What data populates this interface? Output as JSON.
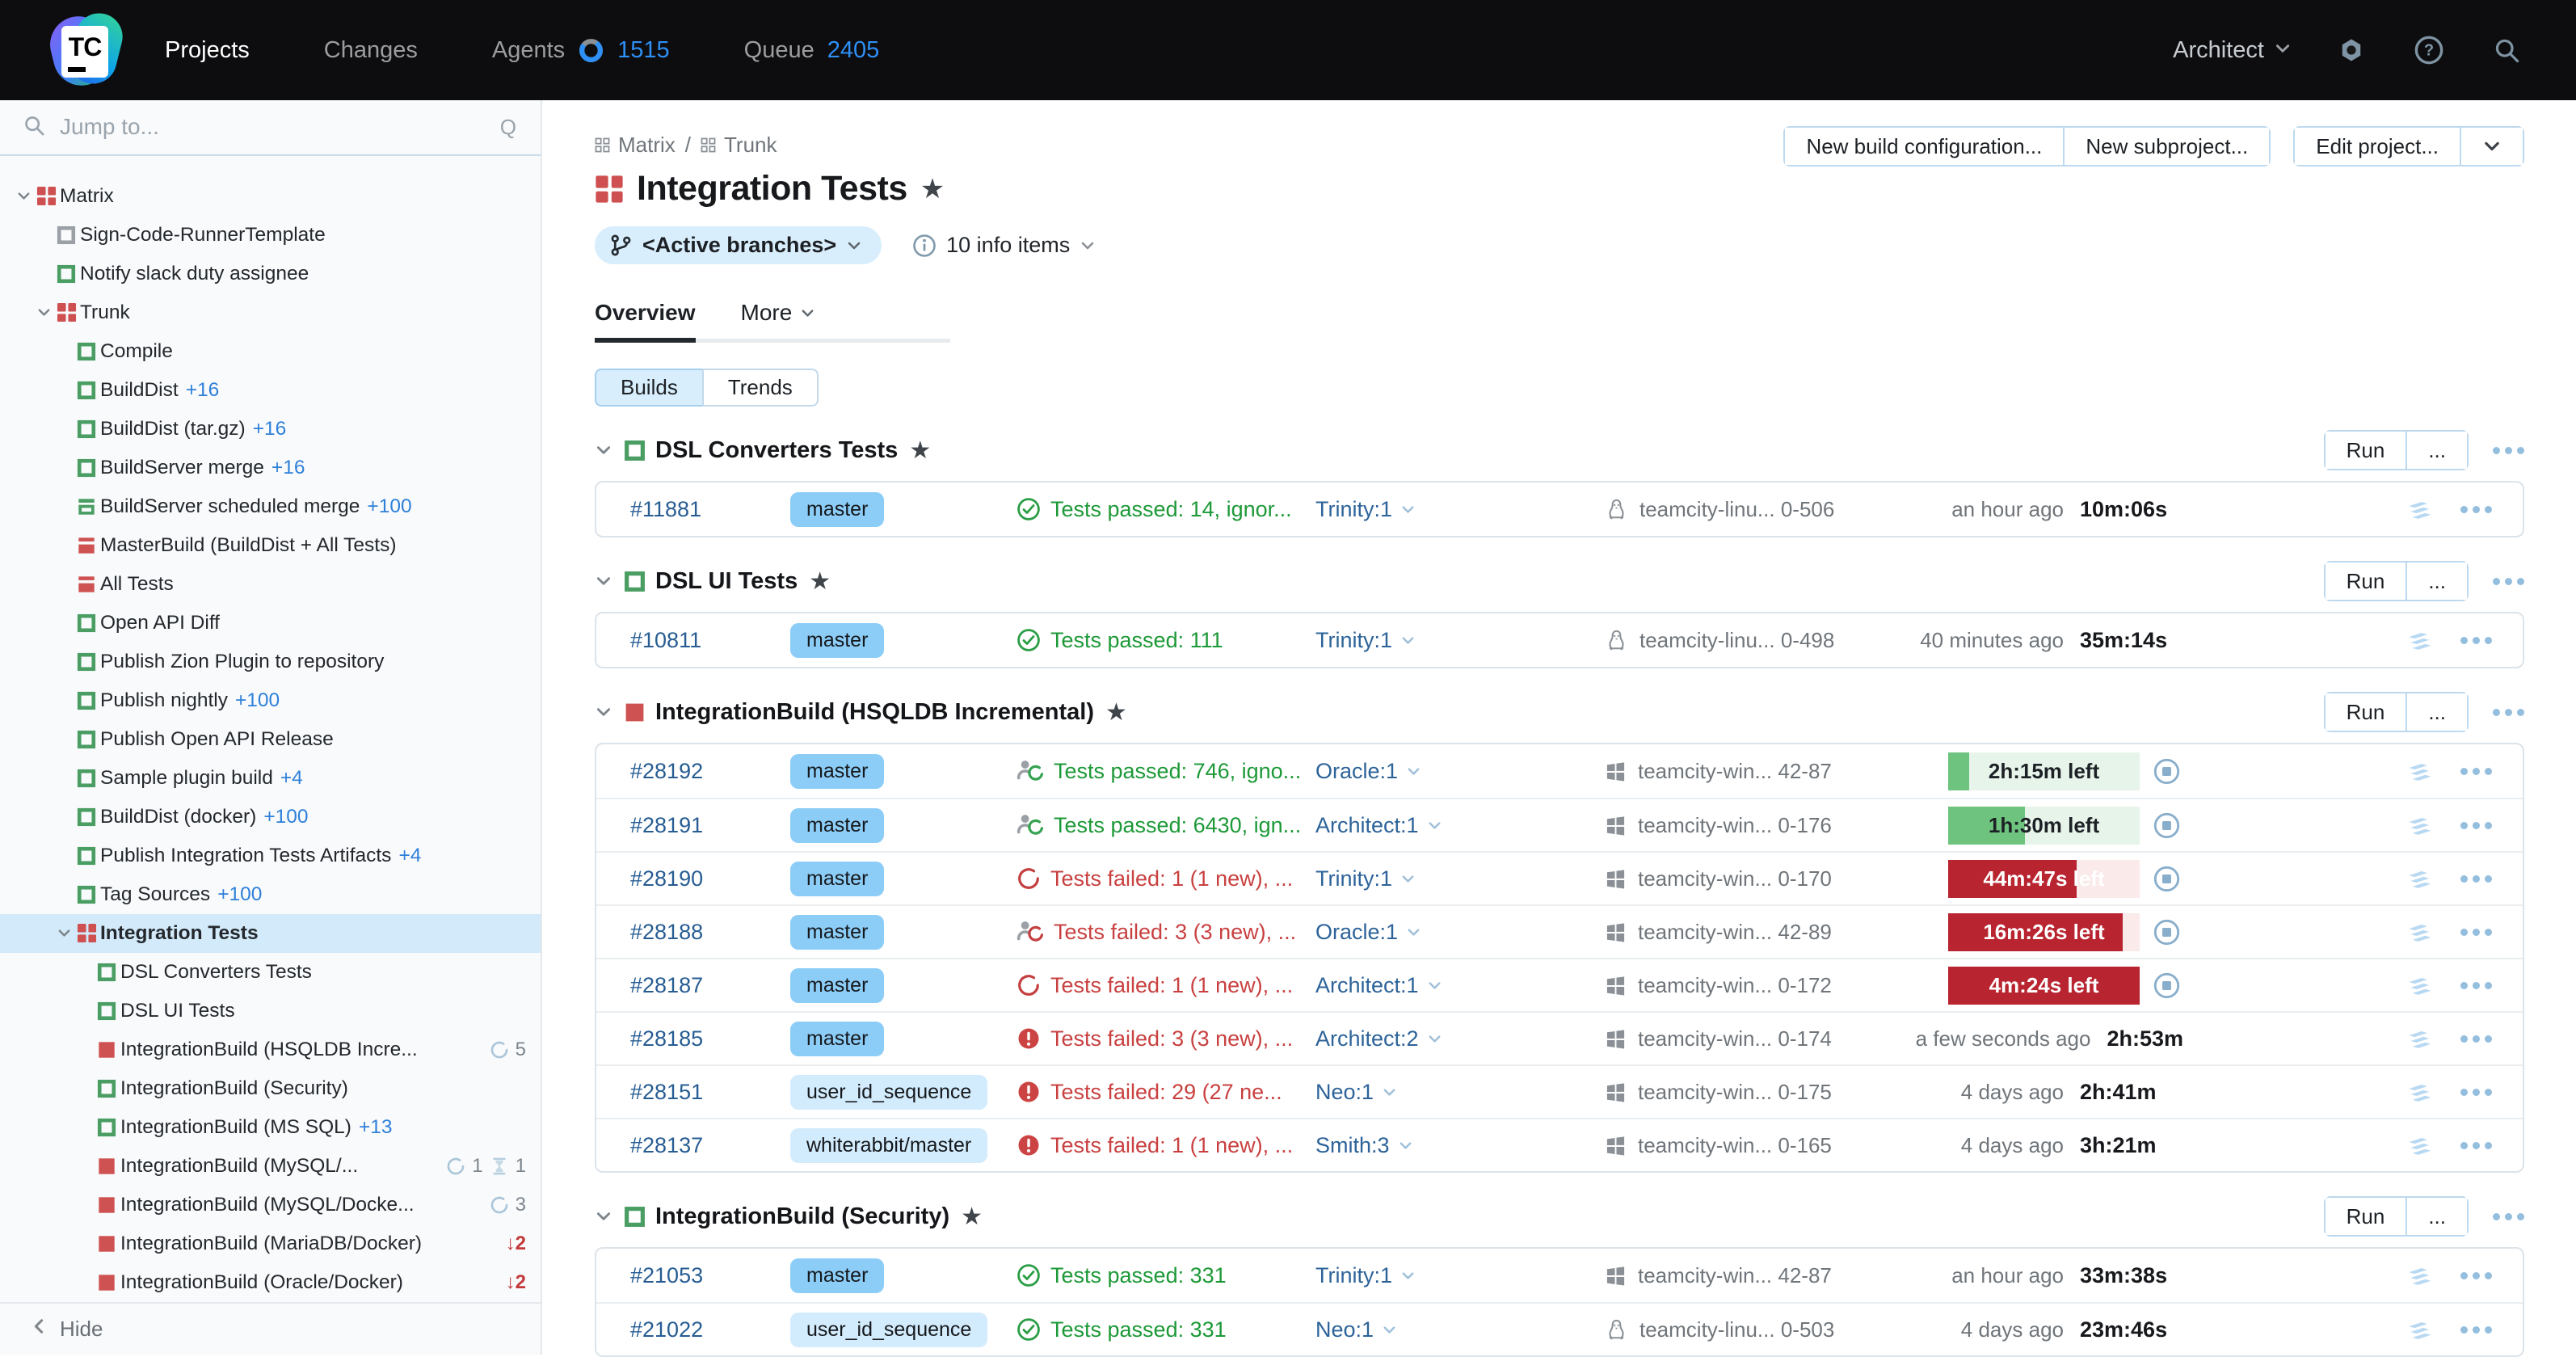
{
  "colors": {
    "topbar_bg": "#0d0d0f",
    "accent_blue": "#2e8ff5",
    "link_blue": "#275d93",
    "success_green": "#1d9937",
    "danger_red": "#c94040",
    "chip_default": "#8ccdf8",
    "chip_light": "#d3ecfd",
    "progress_green": "#6ec47f",
    "progress_green_track": "#e7f4ea",
    "progress_red": "#b8242f",
    "progress_red_track": "#fbeaea",
    "selected_row": "#d2eafa",
    "project_red": "#cf5050",
    "build_green": "#4b9e63"
  },
  "topnav": {
    "logo_text": "TC",
    "items": [
      {
        "label": "Projects",
        "active": true
      },
      {
        "label": "Changes",
        "active": false
      },
      {
        "label": "Agents",
        "active": false,
        "icon": "donut",
        "count": "1515"
      },
      {
        "label": "Queue",
        "active": false,
        "count": "2405"
      }
    ],
    "user_label": "Architect",
    "icons": [
      "gear-icon",
      "help-icon",
      "search-icon"
    ]
  },
  "sidebar": {
    "search_placeholder": "Jump to...",
    "shortcut_hint": "Q",
    "hide_label": "Hide",
    "tree": [
      {
        "depth": 0,
        "icon": "proj",
        "label": "Matrix",
        "expander": true
      },
      {
        "depth": 1,
        "icon": "gray",
        "label": "Sign-Code-RunnerTemplate"
      },
      {
        "depth": 1,
        "icon": "green",
        "label": "Notify slack duty assignee"
      },
      {
        "depth": 1,
        "icon": "proj",
        "label": "Trunk",
        "expander": true
      },
      {
        "depth": 2,
        "icon": "green",
        "label": "Compile"
      },
      {
        "depth": 2,
        "icon": "green",
        "label": "BuildDist",
        "suffix": "+16"
      },
      {
        "depth": 2,
        "icon": "green",
        "label": "BuildDist (tar.gz)",
        "suffix": "+16"
      },
      {
        "depth": 2,
        "icon": "green",
        "label": "BuildServer merge",
        "suffix": "+16"
      },
      {
        "depth": 2,
        "icon": "green-comp",
        "label": "BuildServer scheduled merge",
        "suffix": "+100"
      },
      {
        "depth": 2,
        "icon": "red-comp",
        "label": "MasterBuild (BuildDist + All Tests)"
      },
      {
        "depth": 2,
        "icon": "red-comp",
        "label": "All Tests"
      },
      {
        "depth": 2,
        "icon": "green",
        "label": "Open API Diff"
      },
      {
        "depth": 2,
        "icon": "green",
        "label": "Publish Zion Plugin to repository"
      },
      {
        "depth": 2,
        "icon": "green",
        "label": "Publish nightly",
        "suffix": "+100"
      },
      {
        "depth": 2,
        "icon": "green",
        "label": "Publish Open API Release"
      },
      {
        "depth": 2,
        "icon": "green",
        "label": "Sample plugin build",
        "suffix": "+4"
      },
      {
        "depth": 2,
        "icon": "green",
        "label": "BuildDist (docker)",
        "suffix": "+100"
      },
      {
        "depth": 2,
        "icon": "green",
        "label": "Publish Integration Tests Artifacts",
        "suffix": "+4"
      },
      {
        "depth": 2,
        "icon": "green",
        "label": "Tag Sources",
        "suffix": "+100"
      },
      {
        "depth": 2,
        "icon": "proj",
        "label": "Integration Tests",
        "expander": true,
        "selected": true
      },
      {
        "depth": 3,
        "icon": "green",
        "label": "DSL Converters Tests"
      },
      {
        "depth": 3,
        "icon": "green",
        "label": "DSL UI Tests"
      },
      {
        "depth": 3,
        "icon": "red",
        "label": "IntegrationBuild (HSQLDB Incre...",
        "badges": [
          {
            "type": "spinner",
            "count": "5"
          }
        ]
      },
      {
        "depth": 3,
        "icon": "green",
        "label": "IntegrationBuild (Security)"
      },
      {
        "depth": 3,
        "icon": "green",
        "label": "IntegrationBuild (MS SQL)",
        "suffix": "+13"
      },
      {
        "depth": 3,
        "icon": "red",
        "label": "IntegrationBuild (MySQL/...",
        "badges": [
          {
            "type": "spinner",
            "count": "1"
          },
          {
            "type": "hourglass",
            "count": "1"
          }
        ]
      },
      {
        "depth": 3,
        "icon": "red",
        "label": "IntegrationBuild (MySQL/Docke...",
        "badges": [
          {
            "type": "spinner",
            "count": "3"
          }
        ]
      },
      {
        "depth": 3,
        "icon": "red",
        "label": "IntegrationBuild (MariaDB/Docker)",
        "badges": [
          {
            "type": "arrow-down",
            "count": "2"
          }
        ]
      },
      {
        "depth": 3,
        "icon": "red",
        "label": "IntegrationBuild (Oracle/Docker)",
        "badges": [
          {
            "type": "arrow-down",
            "count": "2"
          }
        ]
      }
    ]
  },
  "header": {
    "breadcrumb": [
      "Matrix",
      "Trunk"
    ],
    "title": "Integration Tests",
    "branch_filter": "<Active branches>",
    "info_items": "10 info items",
    "tabs": [
      {
        "label": "Overview",
        "active": true
      },
      {
        "label": "More",
        "active": false,
        "chevron": true
      }
    ],
    "toggle": [
      {
        "label": "Builds",
        "active": true
      },
      {
        "label": "Trends",
        "active": false
      }
    ],
    "actions_group1": [
      "New build configuration...",
      "New subproject..."
    ],
    "actions_group2": [
      "Edit project..."
    ]
  },
  "group_actions": {
    "run_label": "Run",
    "more_label": "..."
  },
  "groups": [
    {
      "name": "DSL Converters Tests",
      "icon": "green",
      "starred": true,
      "rows": [
        {
          "number": "#11881",
          "branch": "master",
          "branch_style": "default",
          "status_icon": "check",
          "status_kind": "ok",
          "status_text": "Tests passed: 14, ignor...",
          "investigator": "Trinity:1",
          "agent_os": "linux",
          "agent": "teamcity-linu... 0-506",
          "ago": "an hour ago",
          "duration": "10m:06s"
        }
      ]
    },
    {
      "name": "DSL UI Tests",
      "icon": "green",
      "starred": true,
      "rows": [
        {
          "number": "#10811",
          "branch": "master",
          "branch_style": "default",
          "status_icon": "check",
          "status_kind": "ok",
          "status_text": "Tests passed: 111",
          "investigator": "Trinity:1",
          "agent_os": "linux",
          "agent": "teamcity-linu... 0-498",
          "ago": "40 minutes ago",
          "duration": "35m:14s"
        }
      ]
    },
    {
      "name": "IntegrationBuild (HSQLDB Incremental)",
      "icon": "red",
      "starred": true,
      "rows": [
        {
          "number": "#28192",
          "branch": "master",
          "branch_style": "default",
          "status_icon": "user-green",
          "status_kind": "ok",
          "status_text": "Tests passed: 746, igno...",
          "investigator": "Oracle:1",
          "agent_os": "win",
          "agent": "teamcity-win... 42-87",
          "progress": {
            "pct": 11,
            "color": "green",
            "label": "2h:15m left"
          }
        },
        {
          "number": "#28191",
          "branch": "master",
          "branch_style": "default",
          "status_icon": "user-green",
          "status_kind": "ok",
          "status_text": "Tests passed: 6430, ign...",
          "investigator": "Architect:1",
          "agent_os": "win",
          "agent": "teamcity-win... 0-176",
          "progress": {
            "pct": 40,
            "color": "green",
            "label": "1h:30m left"
          }
        },
        {
          "number": "#28190",
          "branch": "master",
          "branch_style": "default",
          "status_icon": "spinner-red",
          "status_kind": "fail",
          "status_text": "Tests failed: 1 (1 new), ...",
          "investigator": "Trinity:1",
          "agent_os": "win",
          "agent": "teamcity-win... 0-170",
          "progress": {
            "pct": 67,
            "color": "red",
            "label": "44m:47s left"
          }
        },
        {
          "number": "#28188",
          "branch": "master",
          "branch_style": "default",
          "status_icon": "user-red",
          "status_kind": "fail",
          "status_text": "Tests failed: 3 (3 new), ...",
          "investigator": "Oracle:1",
          "agent_os": "win",
          "agent": "teamcity-win... 42-89",
          "progress": {
            "pct": 91,
            "color": "red",
            "label": "16m:26s left"
          }
        },
        {
          "number": "#28187",
          "branch": "master",
          "branch_style": "default",
          "status_icon": "spinner-red",
          "status_kind": "fail",
          "status_text": "Tests failed: 1 (1 new), ...",
          "investigator": "Architect:1",
          "agent_os": "win",
          "agent": "teamcity-win... 0-172",
          "progress": {
            "pct": 100,
            "color": "red",
            "label": "4m:24s left"
          }
        },
        {
          "number": "#28185",
          "branch": "master",
          "branch_style": "default",
          "status_icon": "error",
          "status_kind": "fail",
          "status_text": "Tests failed: 3 (3 new), ...",
          "investigator": "Architect:2",
          "agent_os": "win",
          "agent": "teamcity-win... 0-174",
          "ago": "a few seconds ago",
          "duration": "2h:53m"
        },
        {
          "number": "#28151",
          "branch": "user_id_sequence",
          "branch_style": "light",
          "status_icon": "error",
          "status_kind": "fail",
          "status_text": "Tests failed: 29 (27 ne...",
          "investigator": "Neo:1",
          "agent_os": "win",
          "agent": "teamcity-win... 0-175",
          "ago": "4 days ago",
          "duration": "2h:41m"
        },
        {
          "number": "#28137",
          "branch": "whiterabbit/master",
          "branch_style": "light",
          "status_icon": "error",
          "status_kind": "fail",
          "status_text": "Tests failed: 1 (1 new), ...",
          "investigator": "Smith:3",
          "agent_os": "win",
          "agent": "teamcity-win... 0-165",
          "ago": "4 days ago",
          "duration": "3h:21m"
        }
      ]
    },
    {
      "name": "IntegrationBuild (Security)",
      "icon": "green",
      "starred": true,
      "rows": [
        {
          "number": "#21053",
          "branch": "master",
          "branch_style": "default",
          "status_icon": "check",
          "status_kind": "ok",
          "status_text": "Tests passed: 331",
          "investigator": "Trinity:1",
          "agent_os": "win",
          "agent": "teamcity-win... 42-87",
          "ago": "an hour ago",
          "duration": "33m:38s"
        },
        {
          "number": "#21022",
          "branch": "user_id_sequence",
          "branch_style": "light",
          "status_icon": "check",
          "status_kind": "ok",
          "status_text": "Tests passed: 331",
          "investigator": "Neo:1",
          "agent_os": "linux",
          "agent": "teamcity-linu... 0-503",
          "ago": "4 days ago",
          "duration": "23m:46s"
        }
      ]
    }
  ]
}
